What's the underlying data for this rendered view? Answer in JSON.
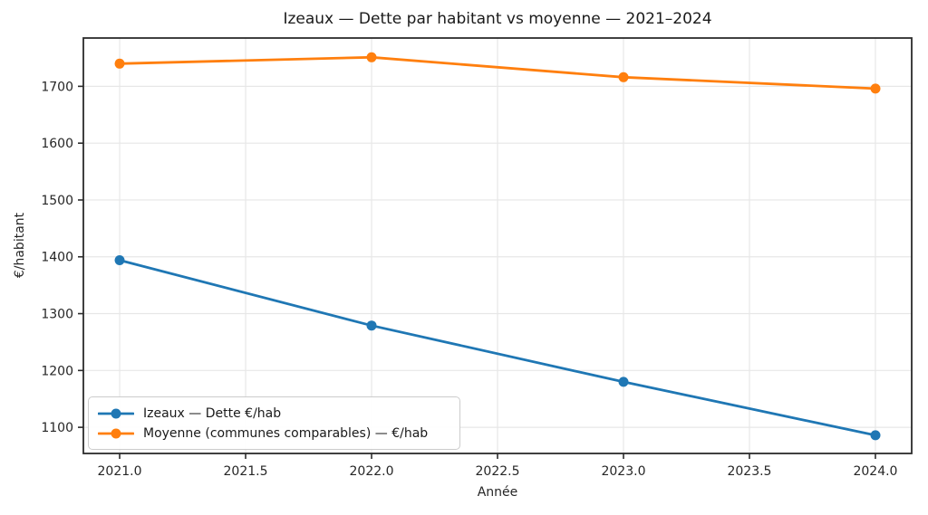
{
  "chart_data": {
    "type": "line",
    "title": "Izeaux — Dette par habitant vs moyenne — 2021–2024",
    "xlabel": "Année",
    "ylabel": "€/habitant",
    "x": [
      2021,
      2022,
      2023,
      2024
    ],
    "series": [
      {
        "name": "Izeaux — Dette €/hab",
        "color": "#1f77b4",
        "marker": "circle",
        "values": [
          1394,
          1279,
          1180,
          1086
        ]
      },
      {
        "name": "Moyenne (communes comparables) — €/hab",
        "color": "#ff7f0e",
        "marker": "circle",
        "values": [
          1740,
          1751,
          1716,
          1696
        ]
      }
    ],
    "xlim": [
      2020.856,
      2024.144
    ],
    "ylim": [
      1054,
      1785
    ],
    "xticks": {
      "values": [
        2021.0,
        2021.5,
        2022.0,
        2022.5,
        2023.0,
        2023.5,
        2024.0
      ],
      "labels": [
        "2021.0",
        "2021.5",
        "2022.0",
        "2022.5",
        "2023.0",
        "2023.5",
        "2024.0"
      ]
    },
    "yticks": {
      "values": [
        1100,
        1200,
        1300,
        1400,
        1500,
        1600,
        1700
      ],
      "labels": [
        "1100",
        "1200",
        "1300",
        "1400",
        "1500",
        "1600",
        "1700"
      ]
    },
    "grid": true,
    "legend_position": "lower left",
    "colors": {
      "grid": "#e7e7e7",
      "spine": "#2b2b2b",
      "text": "#262626",
      "background": "#ffffff"
    }
  }
}
